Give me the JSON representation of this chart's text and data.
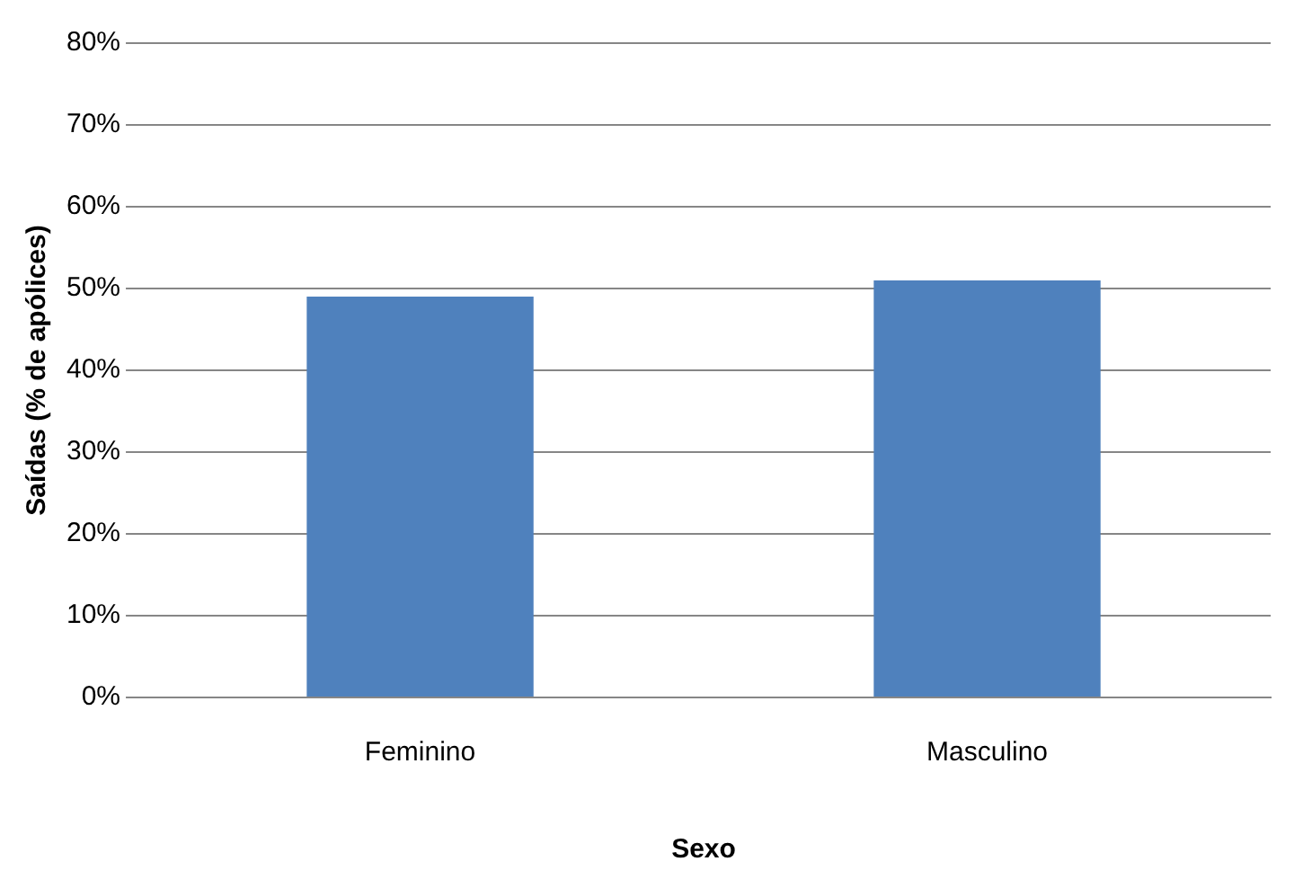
{
  "chart_data": {
    "type": "bar",
    "xlabel": "Sexo",
    "ylabel": "Saídas (% de apólices)",
    "categories": [
      "Feminino",
      "Masculino"
    ],
    "series": [
      {
        "color": "#4f81bd",
        "values": [
          49,
          51
        ]
      }
    ],
    "ylim": [
      0,
      80
    ],
    "yticks": [
      {
        "value": 0,
        "label": "0%"
      },
      {
        "value": 10,
        "label": "10%"
      },
      {
        "value": 20,
        "label": "20%"
      },
      {
        "value": 30,
        "label": "30%"
      },
      {
        "value": 40,
        "label": "40%"
      },
      {
        "value": 50,
        "label": "50%"
      },
      {
        "value": 60,
        "label": "60%"
      },
      {
        "value": 70,
        "label": "70%"
      },
      {
        "value": 80,
        "label": "80%"
      }
    ],
    "grid": "y",
    "legend": false
  }
}
